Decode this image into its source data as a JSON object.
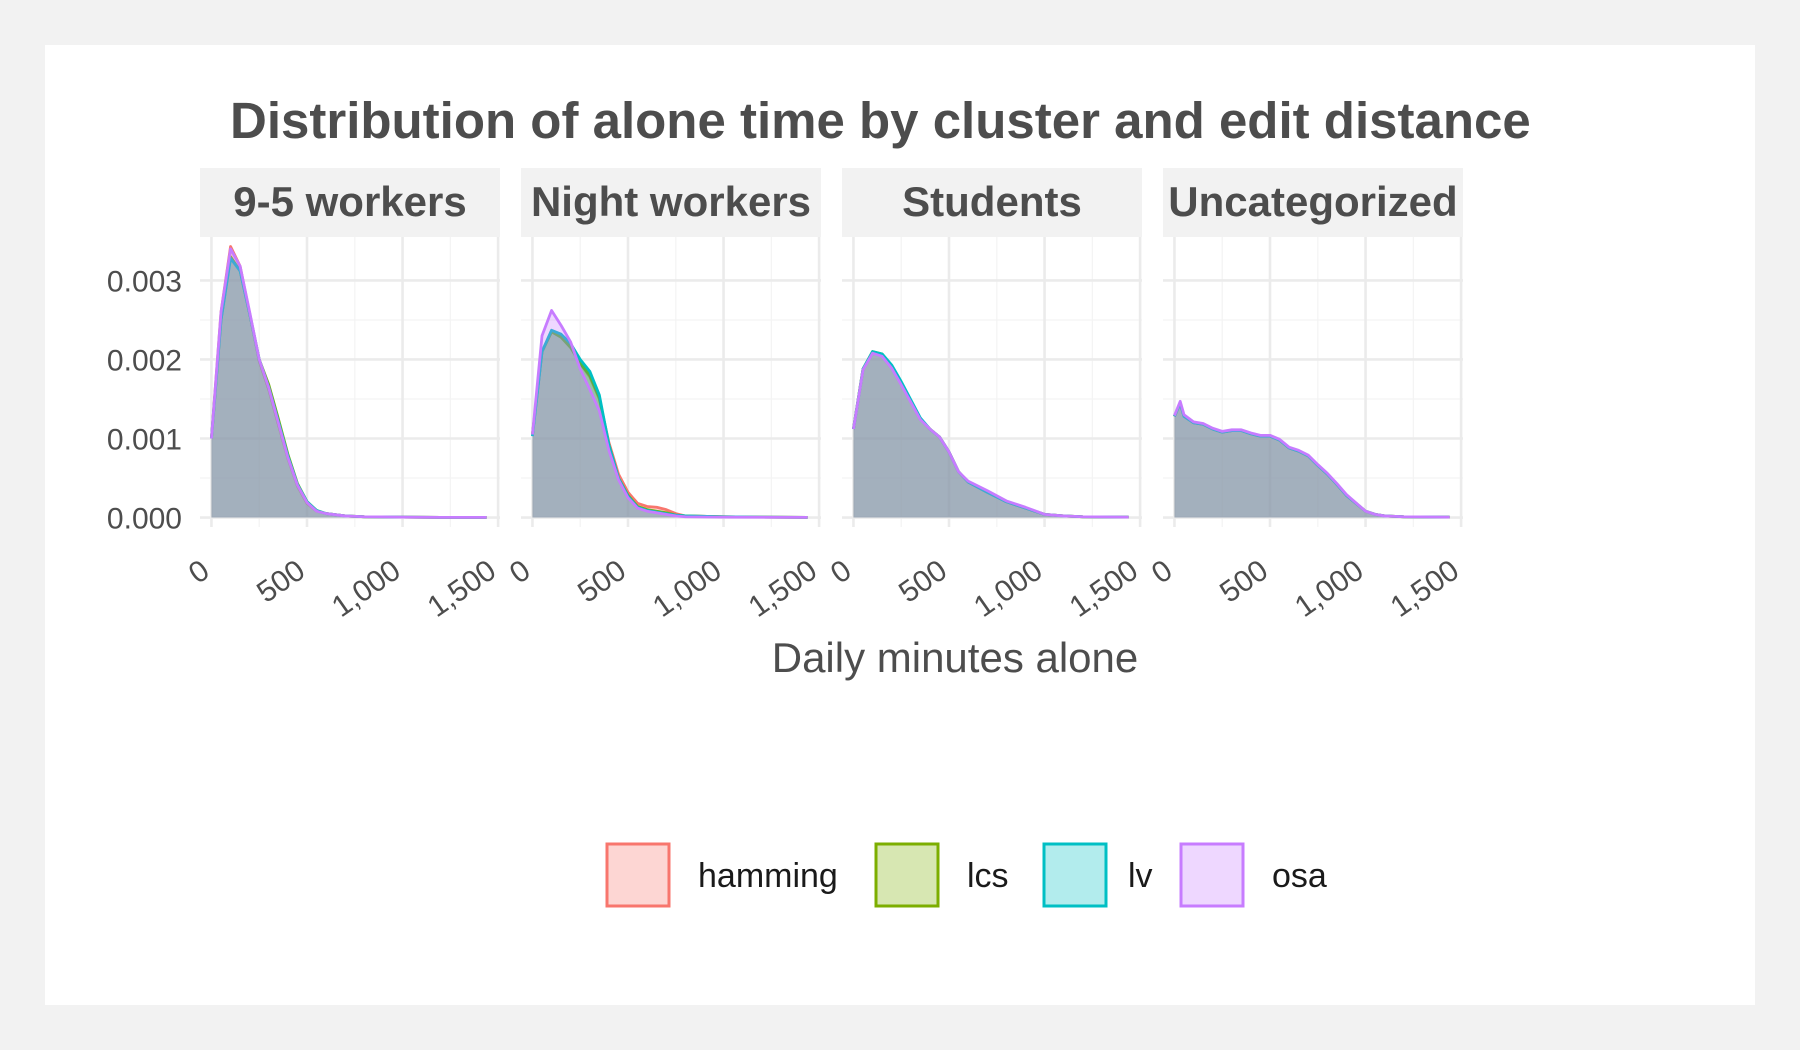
{
  "chart_data": {
    "type": "area",
    "title": "Distribution of alone time by cluster and edit distance",
    "xlabel": "Daily minutes alone",
    "ylabel": "",
    "xlim": [
      -60,
      1510
    ],
    "ylim": [
      -0.00012,
      0.00355
    ],
    "x_ticks": [
      0,
      500,
      1000,
      1500
    ],
    "x_tick_labels": [
      "0",
      "500",
      "1,000",
      "1,500"
    ],
    "y_ticks": [
      0,
      0.001,
      0.002,
      0.003
    ],
    "y_tick_labels": [
      "0.000",
      "0.001",
      "0.002",
      "0.003"
    ],
    "grid": true,
    "legend_position": "bottom",
    "series_names": [
      "hamming",
      "lcs",
      "lv",
      "osa"
    ],
    "series_colors": [
      "#F8766D",
      "#7CAE00",
      "#00BFC4",
      "#C77CFF"
    ],
    "facets": [
      {
        "label": "9-5 workers",
        "series": [
          {
            "name": "hamming",
            "x": [
              0,
              50,
              100,
              150,
              200,
              250,
              300,
              350,
              400,
              450,
              500,
              550,
              600,
              700,
              800,
              1000,
              1200,
              1440
            ],
            "y": [
              0.001,
              0.0026,
              0.00343,
              0.00318,
              0.00258,
              0.00198,
              0.00162,
              0.00118,
              0.00075,
              0.0004,
              0.00018,
              8e-05,
              5e-05,
              2e-05,
              1e-05,
              5e-06,
              2e-06,
              2e-06
            ]
          },
          {
            "name": "lcs",
            "x": [
              0,
              50,
              100,
              150,
              200,
              250,
              300,
              350,
              400,
              450,
              500,
              550,
              600,
              700,
              800,
              1000,
              1200,
              1440
            ],
            "y": [
              0.001,
              0.0025,
              0.0033,
              0.00312,
              0.00258,
              0.002,
              0.00168,
              0.00125,
              0.0008,
              0.00043,
              0.0002,
              9e-05,
              5e-05,
              2e-05,
              1e-05,
              5e-06,
              2e-06,
              2e-06
            ]
          },
          {
            "name": "lv",
            "x": [
              0,
              50,
              100,
              150,
              200,
              250,
              300,
              350,
              400,
              450,
              500,
              550,
              600,
              700,
              800,
              1000,
              1200,
              1440
            ],
            "y": [
              0.001,
              0.0025,
              0.00328,
              0.00312,
              0.00258,
              0.002,
              0.00165,
              0.00122,
              0.00078,
              0.00042,
              0.0002,
              9e-05,
              5e-05,
              2e-05,
              1e-05,
              5e-06,
              2e-06,
              2e-06
            ]
          },
          {
            "name": "osa",
            "x": [
              0,
              50,
              100,
              150,
              200,
              250,
              300,
              350,
              400,
              450,
              500,
              550,
              600,
              700,
              800,
              1000,
              1200,
              1440
            ],
            "y": [
              0.001,
              0.0026,
              0.0034,
              0.00318,
              0.0026,
              0.002,
              0.00164,
              0.0012,
              0.00076,
              0.00041,
              0.00019,
              8e-05,
              5e-05,
              2e-05,
              1e-05,
              5e-06,
              2e-06,
              2e-06
            ]
          }
        ]
      },
      {
        "label": "Night workers",
        "series": [
          {
            "name": "hamming",
            "x": [
              0,
              50,
              100,
              150,
              200,
              250,
              300,
              350,
              400,
              450,
              500,
              550,
              600,
              650,
              700,
              750,
              800,
              1000,
              1200,
              1440
            ],
            "y": [
              0.00105,
              0.0021,
              0.00235,
              0.0023,
              0.00218,
              0.00195,
              0.00178,
              0.0015,
              0.00095,
              0.00055,
              0.00032,
              0.00018,
              0.00014,
              0.00013,
              0.0001,
              5e-05,
              2e-05,
              1e-05,
              5e-06,
              2e-06
            ]
          },
          {
            "name": "lcs",
            "x": [
              0,
              50,
              100,
              150,
              200,
              250,
              300,
              350,
              400,
              450,
              500,
              550,
              600,
              650,
              700,
              750,
              800,
              1000,
              1200,
              1440
            ],
            "y": [
              0.00105,
              0.0021,
              0.00235,
              0.00228,
              0.00215,
              0.00195,
              0.0018,
              0.00152,
              0.00092,
              0.0005,
              0.00028,
              0.00014,
              0.0001,
              8e-05,
              6e-05,
              3e-05,
              2e-05,
              1e-05,
              5e-06,
              2e-06
            ]
          },
          {
            "name": "lv",
            "x": [
              0,
              50,
              100,
              150,
              200,
              250,
              300,
              350,
              400,
              450,
              500,
              550,
              600,
              650,
              700,
              750,
              800,
              1000,
              1200,
              1440
            ],
            "y": [
              0.00103,
              0.0021,
              0.00237,
              0.00232,
              0.0022,
              0.002,
              0.00185,
              0.00155,
              0.00092,
              0.0005,
              0.00027,
              0.00013,
              9e-05,
              7e-05,
              5e-05,
              3e-05,
              2e-05,
              1e-05,
              5e-06,
              2e-06
            ]
          },
          {
            "name": "osa",
            "x": [
              0,
              50,
              100,
              150,
              200,
              250,
              300,
              350,
              400,
              450,
              500,
              550,
              600,
              650,
              700,
              750,
              800,
              1000,
              1200,
              1440
            ],
            "y": [
              0.00105,
              0.0023,
              0.00262,
              0.00243,
              0.00222,
              0.00188,
              0.00162,
              0.00135,
              0.00085,
              0.00048,
              0.00025,
              0.00012,
              8e-05,
              6e-05,
              4e-05,
              2e-05,
              1e-05,
              5e-06,
              3e-06,
              2e-06
            ]
          }
        ]
      },
      {
        "label": "Students",
        "series": [
          {
            "name": "hamming",
            "x": [
              0,
              50,
              100,
              150,
              200,
              250,
              300,
              350,
              400,
              450,
              500,
              550,
              600,
              700,
              800,
              900,
              1000,
              1100,
              1200,
              1440
            ],
            "y": [
              0.00112,
              0.00188,
              0.00208,
              0.00205,
              0.0019,
              0.0017,
              0.00148,
              0.00125,
              0.00112,
              0.00102,
              0.00083,
              0.00058,
              0.00045,
              0.00033,
              0.0002,
              0.00012,
              4e-05,
              2e-05,
              1e-05,
              5e-06
            ]
          },
          {
            "name": "lcs",
            "x": [
              0,
              50,
              100,
              150,
              200,
              250,
              300,
              350,
              400,
              450,
              500,
              550,
              600,
              700,
              800,
              900,
              1000,
              1100,
              1200,
              1440
            ],
            "y": [
              0.00112,
              0.00188,
              0.0021,
              0.00207,
              0.00192,
              0.00171,
              0.00148,
              0.00125,
              0.00112,
              0.00102,
              0.00083,
              0.00058,
              0.00045,
              0.00032,
              0.0002,
              0.00012,
              4e-05,
              2e-05,
              1e-05,
              5e-06
            ]
          },
          {
            "name": "lv",
            "x": [
              0,
              50,
              100,
              150,
              200,
              250,
              300,
              350,
              400,
              450,
              500,
              550,
              600,
              700,
              800,
              900,
              1000,
              1100,
              1200,
              1440
            ],
            "y": [
              0.00112,
              0.00188,
              0.0021,
              0.00207,
              0.00193,
              0.00172,
              0.00149,
              0.00126,
              0.00112,
              0.00102,
              0.00083,
              0.00058,
              0.00045,
              0.00032,
              0.0002,
              0.00012,
              4e-05,
              2e-05,
              1e-05,
              5e-06
            ]
          },
          {
            "name": "osa",
            "x": [
              0,
              50,
              100,
              150,
              200,
              250,
              300,
              350,
              400,
              450,
              500,
              550,
              600,
              700,
              800,
              900,
              1000,
              1100,
              1200,
              1440
            ],
            "y": [
              0.00112,
              0.00187,
              0.00208,
              0.00204,
              0.00189,
              0.00168,
              0.00146,
              0.00124,
              0.00112,
              0.00102,
              0.00083,
              0.00058,
              0.00046,
              0.00034,
              0.00021,
              0.00013,
              4e-05,
              2e-05,
              1e-05,
              5e-06
            ]
          }
        ]
      },
      {
        "label": "Uncategorized",
        "series": [
          {
            "name": "hamming",
            "x": [
              0,
              30,
              50,
              100,
              150,
              200,
              250,
              300,
              350,
              400,
              450,
              500,
              550,
              600,
              650,
              700,
              750,
              800,
              850,
              900,
              1000,
              1050,
              1100,
              1200,
              1440
            ],
            "y": [
              0.00128,
              0.00145,
              0.00128,
              0.0012,
              0.00118,
              0.00112,
              0.00108,
              0.0011,
              0.0011,
              0.00106,
              0.00103,
              0.00103,
              0.00098,
              0.00088,
              0.00084,
              0.00078,
              0.00066,
              0.00055,
              0.00042,
              0.00028,
              8e-05,
              4e-05,
              2e-05,
              1e-05,
              5e-06
            ]
          },
          {
            "name": "lcs",
            "x": [
              0,
              30,
              50,
              100,
              150,
              200,
              250,
              300,
              350,
              400,
              450,
              500,
              550,
              600,
              650,
              700,
              750,
              800,
              850,
              900,
              1000,
              1050,
              1100,
              1200,
              1440
            ],
            "y": [
              0.00128,
              0.00145,
              0.00128,
              0.0012,
              0.00118,
              0.00112,
              0.00108,
              0.0011,
              0.0011,
              0.00106,
              0.00103,
              0.00103,
              0.00098,
              0.00088,
              0.00084,
              0.00078,
              0.00066,
              0.00055,
              0.00042,
              0.00028,
              8e-05,
              4e-05,
              2e-05,
              1e-05,
              5e-06
            ]
          },
          {
            "name": "lv",
            "x": [
              0,
              30,
              50,
              100,
              150,
              200,
              250,
              300,
              350,
              400,
              450,
              500,
              550,
              600,
              650,
              700,
              750,
              800,
              850,
              900,
              1000,
              1050,
              1100,
              1200,
              1440
            ],
            "y": [
              0.00128,
              0.00145,
              0.00128,
              0.0012,
              0.00118,
              0.00112,
              0.00108,
              0.0011,
              0.0011,
              0.00106,
              0.00103,
              0.00103,
              0.00098,
              0.00088,
              0.00084,
              0.00078,
              0.00066,
              0.00055,
              0.00042,
              0.00028,
              8e-05,
              4e-05,
              2e-05,
              1e-05,
              5e-06
            ]
          },
          {
            "name": "osa",
            "x": [
              0,
              30,
              50,
              100,
              150,
              200,
              250,
              300,
              350,
              400,
              450,
              500,
              550,
              600,
              650,
              700,
              750,
              800,
              850,
              900,
              1000,
              1050,
              1100,
              1200,
              1440
            ],
            "y": [
              0.00129,
              0.00147,
              0.0013,
              0.00121,
              0.00119,
              0.00113,
              0.00109,
              0.00111,
              0.00111,
              0.00107,
              0.00104,
              0.00104,
              0.00099,
              0.00089,
              0.00085,
              0.00079,
              0.00067,
              0.00056,
              0.00043,
              0.00029,
              8e-05,
              4e-05,
              2e-05,
              1e-05,
              5e-06
            ]
          }
        ]
      }
    ]
  }
}
